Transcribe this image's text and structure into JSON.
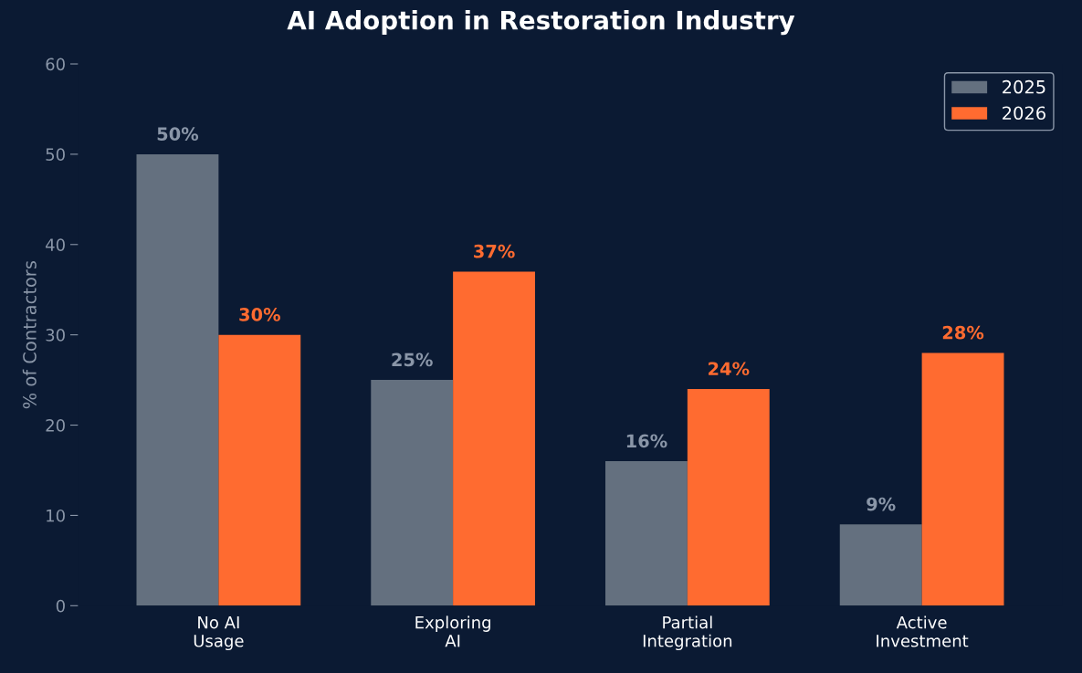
{
  "chart_data": {
    "type": "bar",
    "title": "AI Adoption in Restoration Industry",
    "ylabel": "% of Contractors",
    "categories": [
      "No AI\nUsage",
      "Exploring\nAI",
      "Partial\nIntegration",
      "Active\nInvestment"
    ],
    "series": [
      {
        "name": "2025",
        "color": "#64707f",
        "values": [
          50,
          25,
          16,
          9
        ],
        "value_labels": [
          "50%",
          "25%",
          "16%",
          "9%"
        ]
      },
      {
        "name": "2026",
        "color": "#ff6b30",
        "values": [
          30,
          37,
          24,
          28
        ],
        "value_labels": [
          "30%",
          "37%",
          "24%",
          "28%"
        ]
      }
    ],
    "ylim": [
      0,
      60
    ],
    "yticks": [
      0,
      10,
      20,
      30,
      40,
      50,
      60
    ],
    "grid": false,
    "legend": "top right"
  }
}
